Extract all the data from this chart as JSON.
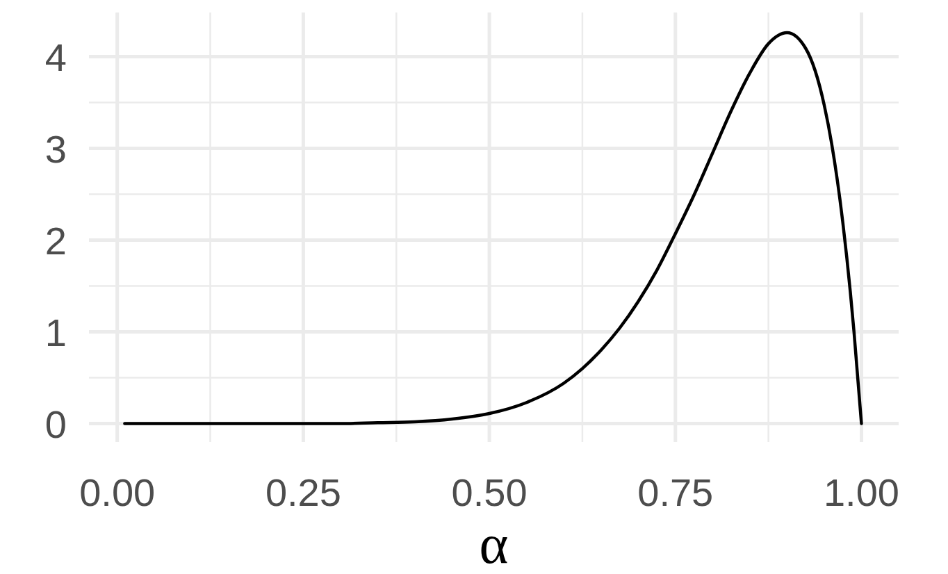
{
  "chart_data": {
    "type": "line",
    "xlabel": "α",
    "x": [
      0.01,
      0.1,
      0.2,
      0.3,
      0.35,
      0.4,
      0.45,
      0.5,
      0.55,
      0.6,
      0.625,
      0.65,
      0.675,
      0.7,
      0.725,
      0.75,
      0.775,
      0.8,
      0.825,
      0.85,
      0.875,
      0.9,
      0.925,
      0.95,
      0.96,
      0.975,
      0.985,
      0.99,
      1.0
    ],
    "series": [
      {
        "color": "#000000",
        "values": [
          0,
          0,
          0,
          0,
          0.01,
          0.02,
          0.05,
          0.11,
          0.23,
          0.44,
          0.6,
          0.8,
          1.04,
          1.33,
          1.67,
          2.07,
          2.49,
          2.95,
          3.41,
          3.82,
          4.14,
          4.26,
          4.09,
          3.47,
          3.05,
          2.19,
          1.44,
          1.0,
          0
        ]
      }
    ],
    "xlim": [
      -0.038,
      1.05
    ],
    "ylim": [
      -0.2,
      4.48
    ],
    "xticks": [
      {
        "value": 0,
        "label": "0.00"
      },
      {
        "value": 0.125,
        "label": null
      },
      {
        "value": 0.25,
        "label": "0.25"
      },
      {
        "value": 0.375,
        "label": null
      },
      {
        "value": 0.5,
        "label": "0.50"
      },
      {
        "value": 0.625,
        "label": null
      },
      {
        "value": 0.75,
        "label": "0.75"
      },
      {
        "value": 0.875,
        "label": null
      },
      {
        "value": 1,
        "label": "1.00"
      }
    ],
    "yticks": [
      0,
      {
        "value": 0.5,
        "label": null
      },
      1,
      {
        "value": 1.5,
        "label": null
      },
      2,
      {
        "value": 2.5,
        "label": null
      },
      3,
      {
        "value": 3.5,
        "label": null
      },
      4
    ],
    "grid": true,
    "marker": "none",
    "line_style": "solid"
  }
}
